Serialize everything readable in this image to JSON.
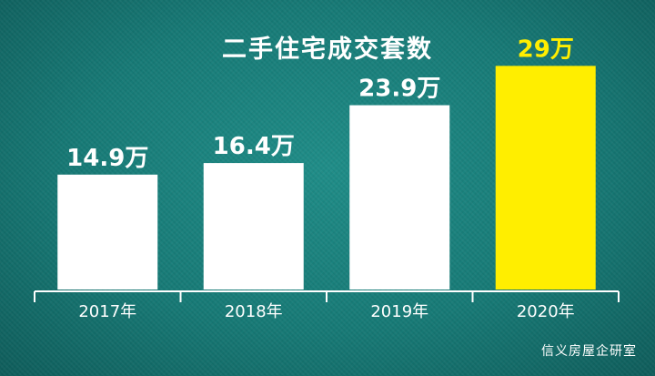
{
  "title": "二手住宅成交套数",
  "source": "信义房屋企研室",
  "colors": {
    "background": "#177a76",
    "bar_default": "#ffffff",
    "bar_highlight": "#ffee00",
    "label_default": "#ffffff",
    "label_highlight": "#ffee00",
    "axis": "#ffffff"
  },
  "chart_data": {
    "type": "bar",
    "title": "二手住宅成交套数",
    "categories": [
      "2017年",
      "2018年",
      "2019年",
      "2020年"
    ],
    "values": [
      14.9,
      16.4,
      23.9,
      29
    ],
    "data_labels": [
      "14.9万",
      "16.4万",
      "23.9万",
      "29万"
    ],
    "unit": "万",
    "highlight_index": 3,
    "ylim": [
      0,
      34
    ],
    "grid": false,
    "legend": "none"
  }
}
